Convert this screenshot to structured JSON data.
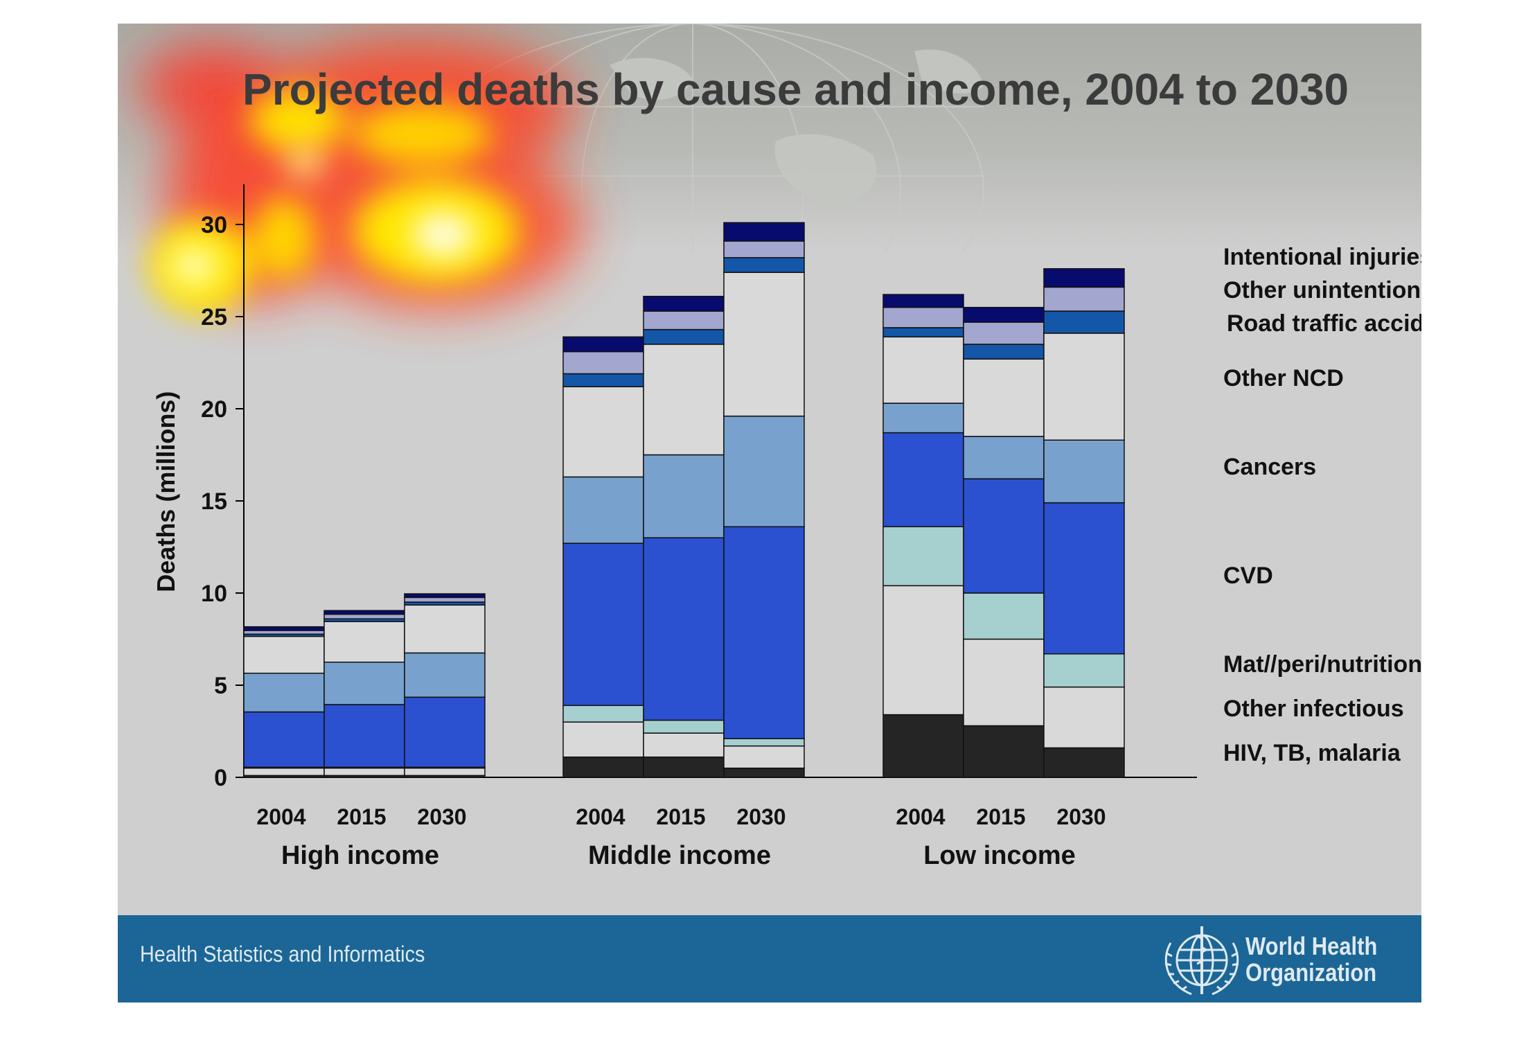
{
  "title": "Projected deaths by cause and income, 2004 to 2030",
  "footer": {
    "department": "Health Statistics and Informatics",
    "org_line1": "World Health",
    "org_line2": "Organization"
  },
  "colors": {
    "hiv_tb_malaria": "#252525",
    "other_infectious": "#d9d9d9",
    "mat_peri_nutritional": "#a6cfcf",
    "cvd": "#2b50d0",
    "cancers": "#78a2cd",
    "other_ncd": "#d9d9d9",
    "road_traffic": "#1457a8",
    "other_unintentional": "#a3a6cf",
    "intentional_injuries": "#070b6e",
    "footer": "#1b6696"
  },
  "chart_data": {
    "type": "bar",
    "stacked": true,
    "ylabel": "Deaths (millions)",
    "ylim": [
      0,
      32
    ],
    "yticks": [
      0,
      5,
      10,
      15,
      20,
      25,
      30
    ],
    "groups": [
      {
        "label": "High income",
        "years": [
          "2004",
          "2015",
          "2030"
        ]
      },
      {
        "label": "Middle income",
        "years": [
          "2004",
          "2015",
          "2030"
        ]
      },
      {
        "label": "Low income",
        "years": [
          "2004",
          "2015",
          "2030"
        ]
      }
    ],
    "series": [
      {
        "name": "HIV, TB, malaria",
        "color_key": "hiv_tb_malaria",
        "values": [
          0.1,
          0.1,
          0.1,
          1.1,
          1.1,
          0.5,
          3.4,
          2.8,
          1.6
        ]
      },
      {
        "name": "Other infectious",
        "color_key": "other_infectious",
        "values": [
          0.4,
          0.4,
          0.4,
          1.9,
          1.3,
          1.2,
          7.0,
          4.7,
          3.3
        ]
      },
      {
        "name": "Mat//peri/nutritional",
        "color_key": "mat_peri_nutritional",
        "values": [
          0.05,
          0.05,
          0.05,
          0.9,
          0.7,
          0.4,
          3.2,
          2.5,
          1.8
        ]
      },
      {
        "name": "CVD",
        "color_key": "cvd",
        "values": [
          3.0,
          3.4,
          3.8,
          8.8,
          9.9,
          11.5,
          5.1,
          6.2,
          8.2
        ]
      },
      {
        "name": "Cancers",
        "color_key": "cancers",
        "values": [
          2.1,
          2.3,
          2.4,
          3.6,
          4.5,
          6.0,
          1.6,
          2.3,
          3.4
        ]
      },
      {
        "name": "Other NCD",
        "color_key": "other_ncd",
        "values": [
          2.0,
          2.2,
          2.6,
          4.9,
          6.0,
          7.8,
          3.6,
          4.2,
          5.8
        ]
      },
      {
        "name": "Road traffic accidents",
        "color_key": "road_traffic",
        "values": [
          0.12,
          0.15,
          0.16,
          0.7,
          0.8,
          0.8,
          0.5,
          0.8,
          1.2
        ]
      },
      {
        "name": "Other unintentional",
        "color_key": "other_unintentional",
        "values": [
          0.2,
          0.25,
          0.25,
          1.2,
          1.0,
          0.9,
          1.1,
          1.2,
          1.3
        ]
      },
      {
        "name": "Intentional injuries",
        "color_key": "intentional_injuries",
        "values": [
          0.2,
          0.2,
          0.2,
          0.8,
          0.8,
          1.0,
          0.7,
          0.8,
          1.0
        ]
      }
    ]
  }
}
